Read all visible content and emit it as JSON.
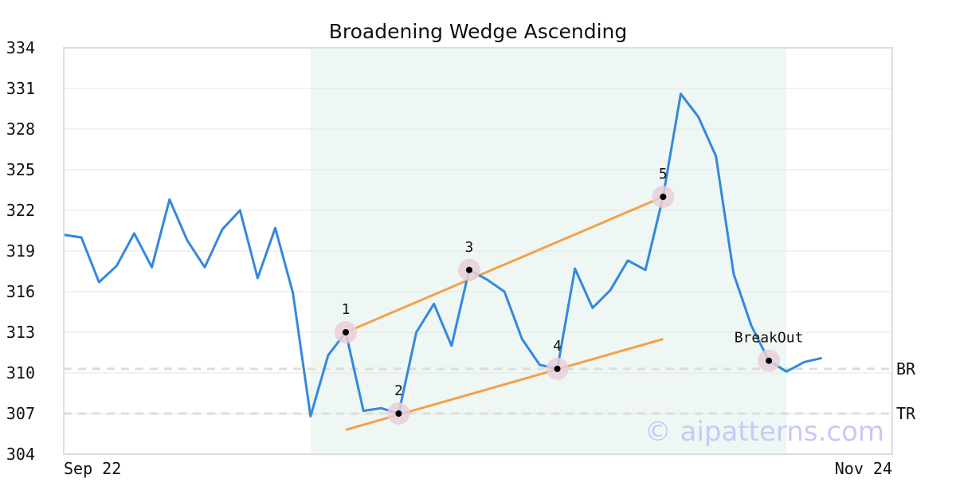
{
  "chart_data": {
    "type": "line",
    "title": "Broadening Wedge Ascending",
    "xlabel": "",
    "ylabel": "",
    "ylim": [
      304,
      334
    ],
    "yticks": [
      304,
      307,
      310,
      313,
      316,
      319,
      322,
      325,
      328,
      331,
      334
    ],
    "x_tick_labels": [
      {
        "index": 0,
        "label": "Sep 22"
      },
      {
        "index": 47,
        "label": "Nov 24"
      }
    ],
    "x_count": 48,
    "grid": true,
    "colors": {
      "price": "#3388dd",
      "trendline": "#f5a04a",
      "pattern_zone": "#eef7f3",
      "marker_halo": "#e9cfd9",
      "reference": "#dddddd",
      "watermark": "#c9c9f7"
    },
    "series": [
      {
        "values": [
          320.2,
          320.0,
          316.7,
          317.9,
          320.3,
          317.8,
          322.8,
          319.8,
          317.8,
          320.6,
          322.0,
          317.0,
          320.7,
          315.9,
          306.8,
          311.3,
          313.0,
          307.2,
          307.4,
          307.0,
          313.0,
          315.1,
          312.0,
          317.6,
          316.9,
          316.0,
          312.5,
          310.6,
          310.3,
          317.7,
          314.8,
          316.1,
          318.3,
          317.6,
          323.0,
          330.6,
          328.9,
          326.0,
          317.3,
          313.5,
          310.9,
          310.1,
          310.8,
          311.1
        ]
      }
    ],
    "trendlines": [
      {
        "from": [
          16,
          313.0
        ],
        "to": [
          34,
          323.0
        ]
      },
      {
        "from": [
          16,
          305.8
        ],
        "to": [
          34,
          312.5
        ]
      }
    ],
    "pattern_zone": {
      "x_start": 14,
      "x_end": 41
    },
    "points": [
      {
        "label": "1",
        "x": 16,
        "y": 313.0
      },
      {
        "label": "2",
        "x": 19,
        "y": 307.0
      },
      {
        "label": "3",
        "x": 23,
        "y": 317.6
      },
      {
        "label": "4",
        "x": 28,
        "y": 310.3
      },
      {
        "label": "5",
        "x": 34,
        "y": 323.0
      },
      {
        "label": "BreakOut",
        "x": 40,
        "y": 310.9
      }
    ],
    "reference_lines": [
      {
        "label": "BR",
        "y": 310.3
      },
      {
        "label": "TR",
        "y": 307.0
      }
    ],
    "watermark": "© aipatterns.com"
  }
}
